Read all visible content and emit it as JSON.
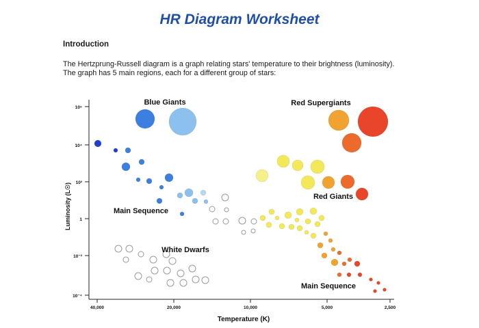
{
  "document": {
    "title": "HR Diagram Worksheet",
    "section_heading": "Introduction",
    "intro_line1": "The Hertzprung-Russell diagram is a graph relating stars' temperature to their brightness (luminosity).",
    "intro_line2": "The graph has 5 main regions, each for a different group of stars:"
  },
  "chart_data": {
    "type": "scatter",
    "xlabel": "Temperature (K)",
    "ylabel": "Luminosity (L☉)",
    "x_ticks": [
      "40,000",
      "20,000",
      "10,000",
      "5,000",
      "2,500"
    ],
    "y_ticks": [
      "10⁶",
      "10⁴",
      "10²",
      "1",
      "10⁻²",
      "10⁻⁴"
    ],
    "regions": [
      "Blue Giants",
      "Red Supergiants",
      "Red Giants",
      "Main Sequence",
      "White Dwarfs",
      "Main Sequence"
    ],
    "colors": {
      "blue_dark": "#1f3fd1",
      "blue": "#3d7fe0",
      "blue_light": "#8cc0ee",
      "blue_pale": "#b9d8ee",
      "yellow": "#f2e85a",
      "yellow_light": "#f6f08a",
      "orange": "#f0a331",
      "orange_red": "#ec6a2c",
      "red": "#e8452a",
      "white_dwarf_stroke": "#9a9a9a"
    }
  }
}
